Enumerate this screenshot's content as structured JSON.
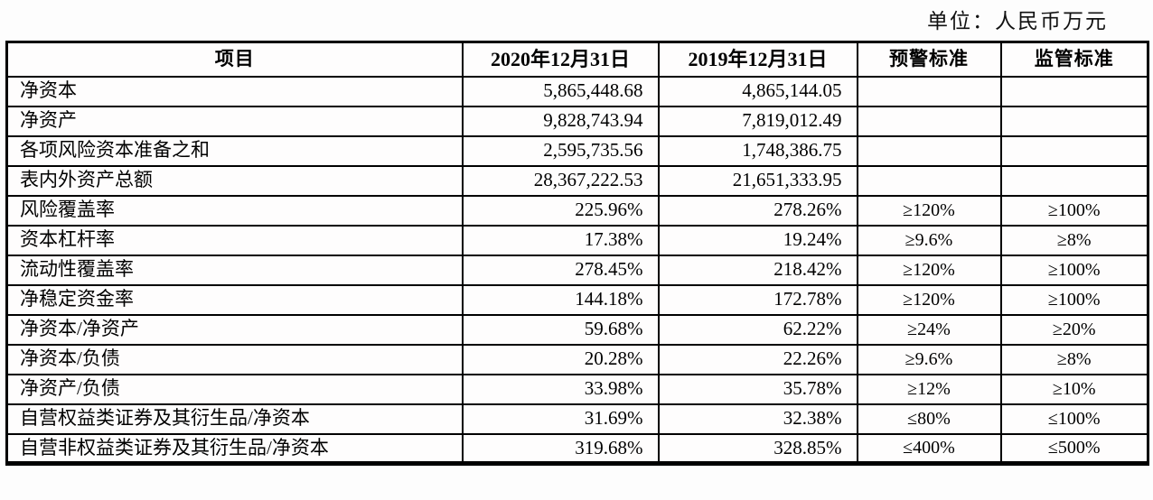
{
  "unit_label": "单位：人民币万元",
  "table": {
    "headers": {
      "item": "项目",
      "date_2020": "2020年12月31日",
      "date_2019": "2019年12月31日",
      "warning": "预警标准",
      "regulatory": "监管标准"
    },
    "rows": [
      {
        "item": "净资本",
        "v2020": "5,865,448.68",
        "v2019": "4,865,144.05",
        "warning": "",
        "regulatory": ""
      },
      {
        "item": "净资产",
        "v2020": "9,828,743.94",
        "v2019": "7,819,012.49",
        "warning": "",
        "regulatory": ""
      },
      {
        "item": "各项风险资本准备之和",
        "v2020": "2,595,735.56",
        "v2019": "1,748,386.75",
        "warning": "",
        "regulatory": ""
      },
      {
        "item": "表内外资产总额",
        "v2020": "28,367,222.53",
        "v2019": "21,651,333.95",
        "warning": "",
        "regulatory": ""
      },
      {
        "item": "风险覆盖率",
        "v2020": "225.96%",
        "v2019": "278.26%",
        "warning": "≥120%",
        "regulatory": "≥100%"
      },
      {
        "item": "资本杠杆率",
        "v2020": "17.38%",
        "v2019": "19.24%",
        "warning": "≥9.6%",
        "regulatory": "≥8%"
      },
      {
        "item": "流动性覆盖率",
        "v2020": "278.45%",
        "v2019": "218.42%",
        "warning": "≥120%",
        "regulatory": "≥100%"
      },
      {
        "item": "净稳定资金率",
        "v2020": "144.18%",
        "v2019": "172.78%",
        "warning": "≥120%",
        "regulatory": "≥100%"
      },
      {
        "item": "净资本/净资产",
        "v2020": "59.68%",
        "v2019": "62.22%",
        "warning": "≥24%",
        "regulatory": "≥20%"
      },
      {
        "item": "净资本/负债",
        "v2020": "20.28%",
        "v2019": "22.26%",
        "warning": "≥9.6%",
        "regulatory": "≥8%"
      },
      {
        "item": "净资产/负债",
        "v2020": "33.98%",
        "v2019": "35.78%",
        "warning": "≥12%",
        "regulatory": "≥10%"
      },
      {
        "item": "自营权益类证券及其衍生品/净资本",
        "v2020": "31.69%",
        "v2019": "32.38%",
        "warning": "≤80%",
        "regulatory": "≤100%"
      },
      {
        "item": "自营非权益类证券及其衍生品/净资本",
        "v2020": "319.68%",
        "v2019": "328.85%",
        "warning": "≤400%",
        "regulatory": "≤500%"
      }
    ]
  }
}
